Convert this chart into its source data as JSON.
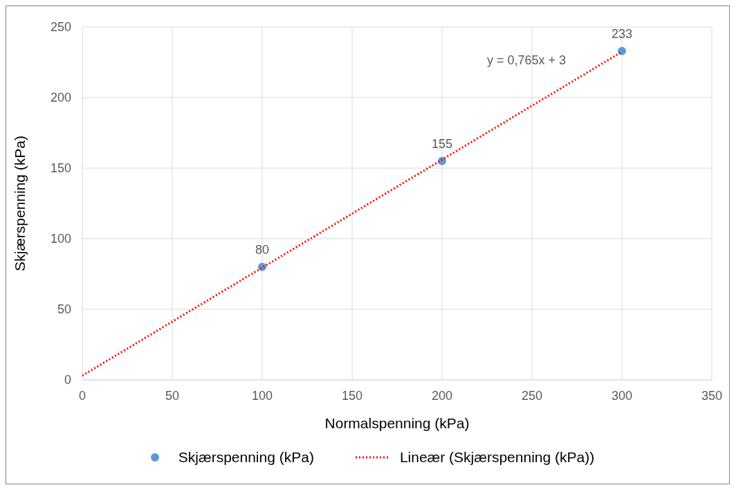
{
  "chart_data": {
    "type": "scatter",
    "xlabel": "Normalspenning (kPa)",
    "ylabel": "Skjærspenning (kPa)",
    "xlim": [
      0,
      350
    ],
    "xticks": [
      0,
      50,
      100,
      150,
      200,
      250,
      300,
      350
    ],
    "ylim": [
      0,
      250
    ],
    "yticks": [
      0,
      50,
      100,
      150,
      200,
      250
    ],
    "grid": true,
    "legend": "bottom",
    "annotations": [
      "y = 0,765x + 3"
    ],
    "series": [
      {
        "name": "Skjærspenning (kPa)",
        "marker": "circle",
        "color": "#5b9bd5",
        "x": [
          100,
          200,
          300
        ],
        "values": [
          80,
          155,
          233
        ],
        "value_labels": [
          "80",
          "155",
          "233"
        ]
      },
      {
        "name": "Lineær (Skjærspenning (kPa))",
        "type": "line",
        "marker": "none",
        "line_style": "dotted",
        "color": "#ff0000",
        "x": [
          0,
          300
        ],
        "values": [
          3,
          232.5
        ]
      }
    ]
  }
}
